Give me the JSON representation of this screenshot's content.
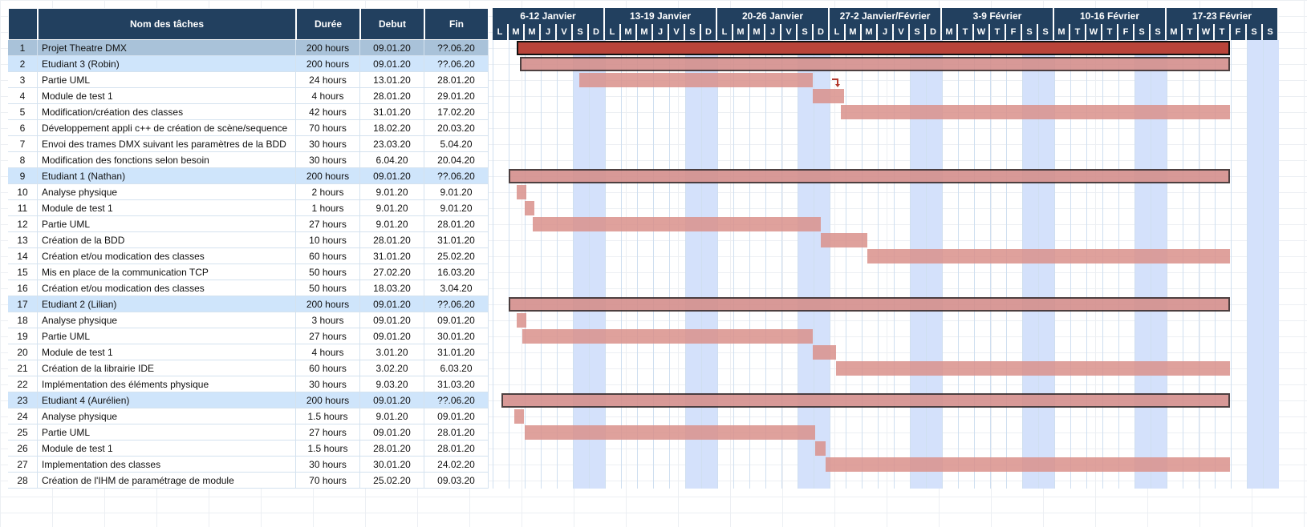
{
  "columns": {
    "num": "",
    "name": "Nom des tâches",
    "duree": "Durée",
    "debut": "Debut",
    "fin": "Fin"
  },
  "weeks": [
    "6-12 Janvier",
    "13-19 Janvier",
    "20-26 Janvier",
    "27-2 Janvier/Février",
    "3-9 Février",
    "10-16 Février",
    "17-23 Février"
  ],
  "days": [
    "L",
    "M",
    "M",
    "J",
    "V",
    "S",
    "D",
    "L",
    "M",
    "M",
    "J",
    "V",
    "S",
    "D",
    "L",
    "M",
    "M",
    "J",
    "V",
    "S",
    "D",
    "L",
    "M",
    "M",
    "J",
    "V",
    "S",
    "D",
    "M",
    "T",
    "W",
    "T",
    "F",
    "S",
    "S",
    "M",
    "T",
    "W",
    "T",
    "F",
    "S",
    "S",
    "M",
    "T",
    "W",
    "T",
    "F",
    "S",
    "S"
  ],
  "colors": {
    "header_bg": "#22405f",
    "header_text": "#ffffff",
    "row_highlight": "#cfe5fb",
    "row_selected": "#a9c2d9",
    "weekend": "#d4e1fb",
    "bar": "#d9908b",
    "project_bar": "#b9443a"
  },
  "tasks": [
    {
      "num": "1",
      "name": "Projet Theatre DMX",
      "duree": "200 hours",
      "debut": "09.01.20",
      "fin": "??.06.20",
      "style": "sel",
      "bar": "project"
    },
    {
      "num": "2",
      "name": "Etudiant 3 (Robin)",
      "duree": "200 hours",
      "debut": "09.01.20",
      "fin": "??.06.20",
      "style": "hl",
      "bar": "summary"
    },
    {
      "num": "3",
      "name": "Partie UML",
      "duree": "24 hours",
      "debut": "13.01.20",
      "fin": "28.01.20",
      "style": "",
      "bar": "task"
    },
    {
      "num": "4",
      "name": "Module de test 1",
      "duree": "4 hours",
      "debut": "28.01.20",
      "fin": "29.01.20",
      "style": "",
      "bar": "task"
    },
    {
      "num": "5",
      "name": "Modification/création des classes",
      "duree": "42 hours",
      "debut": "31.01.20",
      "fin": "17.02.20",
      "style": "",
      "bar": "task"
    },
    {
      "num": "6",
      "name": "Développement appli c++ de création de scène/sequence",
      "duree": "70 hours",
      "debut": "18.02.20",
      "fin": "20.03.20",
      "style": "",
      "bar": "none"
    },
    {
      "num": "7",
      "name": "Envoi des trames DMX suivant les paramètres de la BDD",
      "duree": "30 hours",
      "debut": "23.03.20",
      "fin": "5.04.20",
      "style": "",
      "bar": "none"
    },
    {
      "num": "8",
      "name": "Modification des fonctions selon besoin",
      "duree": "30 hours",
      "debut": "6.04.20",
      "fin": "20.04.20",
      "style": "",
      "bar": "none"
    },
    {
      "num": "9",
      "name": "Etudiant 1 (Nathan)",
      "duree": "200 hours",
      "debut": "09.01.20",
      "fin": "??.06.20",
      "style": "hl",
      "bar": "summary"
    },
    {
      "num": "10",
      "name": "Analyse physique",
      "duree": "2 hours",
      "debut": "9.01.20",
      "fin": "9.01.20",
      "style": "",
      "bar": "task"
    },
    {
      "num": "11",
      "name": "Module de test 1",
      "duree": "1 hours",
      "debut": "9.01.20",
      "fin": "9.01.20",
      "style": "",
      "bar": "task"
    },
    {
      "num": "12",
      "name": "Partie UML",
      "duree": "27 hours",
      "debut": "9.01.20",
      "fin": "28.01.20",
      "style": "",
      "bar": "task"
    },
    {
      "num": "13",
      "name": "Création de la BDD",
      "duree": "10 hours",
      "debut": "28.01.20",
      "fin": "31.01.20",
      "style": "",
      "bar": "task"
    },
    {
      "num": "14",
      "name": "Création et/ou modication des classes",
      "duree": "60 hours",
      "debut": "31.01.20",
      "fin": "25.02.20",
      "style": "",
      "bar": "task"
    },
    {
      "num": "15",
      "name": "Mis en place de la communication TCP",
      "duree": "50 hours",
      "debut": "27.02.20",
      "fin": "16.03.20",
      "style": "",
      "bar": "none"
    },
    {
      "num": "16",
      "name": "Création et/ou modication des classes",
      "duree": "50 hours",
      "debut": "18.03.20",
      "fin": "3.04.20",
      "style": "",
      "bar": "none"
    },
    {
      "num": "17",
      "name": "Etudiant 2 (Lilian)",
      "duree": "200 hours",
      "debut": "09.01.20",
      "fin": "??.06.20",
      "style": "hl",
      "bar": "summary"
    },
    {
      "num": "18",
      "name": "Analyse physique",
      "duree": "3 hours",
      "debut": "09.01.20",
      "fin": "09.01.20",
      "style": "",
      "bar": "task"
    },
    {
      "num": "19",
      "name": "Partie UML",
      "duree": "27 hours",
      "debut": "09.01.20",
      "fin": "30.01.20",
      "style": "",
      "bar": "task"
    },
    {
      "num": "20",
      "name": "Module de test 1",
      "duree": "4 hours",
      "debut": "3.01.20",
      "fin": "31.01.20",
      "style": "",
      "bar": "task"
    },
    {
      "num": "21",
      "name": "Création de la librairie IDE",
      "duree": "60 hours",
      "debut": "3.02.20",
      "fin": "6.03.20",
      "style": "",
      "bar": "task"
    },
    {
      "num": "22",
      "name": "Implémentation des éléments physique",
      "duree": "30 hours",
      "debut": "9.03.20",
      "fin": "31.03.20",
      "style": "",
      "bar": "none"
    },
    {
      "num": "23",
      "name": "Etudiant 4 (Aurélien)",
      "duree": "200 hours",
      "debut": "09.01.20",
      "fin": "??.06.20",
      "style": "hl",
      "bar": "summary"
    },
    {
      "num": "24",
      "name": "Analyse physique",
      "duree": "1.5 hours",
      "debut": "9.01.20",
      "fin": "09.01.20",
      "style": "",
      "bar": "task"
    },
    {
      "num": "25",
      "name": "Partie UML",
      "duree": "27 hours",
      "debut": "09.01.20",
      "fin": "28.01.20",
      "style": "",
      "bar": "task"
    },
    {
      "num": "26",
      "name": "Module de test 1",
      "duree": "1.5 hours",
      "debut": "28.01.20",
      "fin": "28.01.20",
      "style": "",
      "bar": "task"
    },
    {
      "num": "27",
      "name": "Implementation des classes",
      "duree": "30 hours",
      "debut": "30.01.20",
      "fin": "24.02.20",
      "style": "",
      "bar": "task"
    },
    {
      "num": "28",
      "name": "Création de l'IHM de paramétrage de module",
      "duree": "70 hours",
      "debut": "25.02.20",
      "fin": "09.03.20",
      "style": "",
      "bar": "none"
    }
  ]
}
